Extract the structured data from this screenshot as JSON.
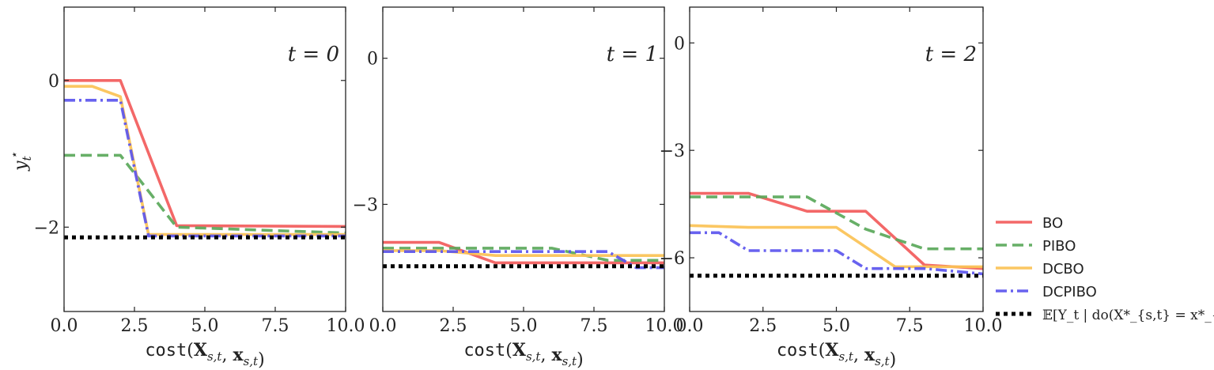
{
  "chart_data": [
    {
      "type": "line",
      "annotation": "t = 0",
      "xlabel": "cost(X_{s,t}, x_{s,t})",
      "ylabel": "y_t^*",
      "xlim": [
        0,
        10
      ],
      "ylim": [
        -3.15,
        1.0
      ],
      "xticks": [
        0.0,
        2.5,
        5.0,
        7.5,
        10.0
      ],
      "xtick_labels": [
        "0.0",
        "2.5",
        "5.0",
        "7.5",
        "10.0"
      ],
      "yticks": [
        0,
        -2
      ],
      "ytick_labels": [
        "0",
        "−2"
      ],
      "series": [
        {
          "name": "BO",
          "x": [
            0,
            2,
            4,
            10
          ],
          "y": [
            0.0,
            0.0,
            -1.98,
            -1.99
          ]
        },
        {
          "name": "PIBO",
          "x": [
            0,
            2,
            4,
            10
          ],
          "y": [
            -1.02,
            -1.02,
            -2.0,
            -2.08
          ]
        },
        {
          "name": "DCBO",
          "x": [
            0,
            1,
            2,
            3,
            10
          ],
          "y": [
            -0.08,
            -0.08,
            -0.22,
            -2.1,
            -2.1
          ]
        },
        {
          "name": "DCPIBO",
          "x": [
            0,
            2,
            3,
            10
          ],
          "y": [
            -0.27,
            -0.27,
            -2.12,
            -2.12
          ]
        },
        {
          "name": "𝔼[Y_t | do(X*_{s,t} = x*_{s,t})]",
          "x": [
            0,
            10
          ],
          "y": [
            -2.14,
            -2.14
          ]
        }
      ]
    },
    {
      "type": "line",
      "annotation": "t = 1",
      "xlabel": "cost(X_{s,t}, x_{s,t})",
      "ylabel": "",
      "xlim": [
        0,
        10
      ],
      "ylim": [
        -5.2,
        1.05
      ],
      "xticks": [
        0.0,
        2.5,
        5.0,
        7.5,
        10.0
      ],
      "xtick_labels": [
        "0.0",
        "2.5",
        "5.0",
        "7.5",
        "10.0"
      ],
      "yticks": [
        0,
        -3
      ],
      "ytick_labels": [
        "0",
        "−3"
      ],
      "series": [
        {
          "name": "BO",
          "x": [
            0,
            2,
            4,
            10
          ],
          "y": [
            -3.78,
            -3.78,
            -4.2,
            -4.2
          ]
        },
        {
          "name": "PIBO",
          "x": [
            0,
            6,
            8,
            10
          ],
          "y": [
            -3.9,
            -3.9,
            -4.15,
            -4.15
          ]
        },
        {
          "name": "DCBO",
          "x": [
            0,
            2,
            4,
            10
          ],
          "y": [
            -3.95,
            -3.95,
            -4.05,
            -4.05
          ]
        },
        {
          "name": "DCPIBO",
          "x": [
            0,
            6,
            8,
            9,
            10
          ],
          "y": [
            -3.97,
            -3.97,
            -3.97,
            -4.3,
            -4.3
          ]
        },
        {
          "name": "𝔼[Y_t | do(X*_{s,t} = x*_{s,t})]",
          "x": [
            0,
            10
          ],
          "y": [
            -4.27,
            -4.27
          ]
        }
      ]
    },
    {
      "type": "line",
      "annotation": "t = 2",
      "xlabel": "cost(X_{s,t}, x_{s,t})",
      "ylabel": "",
      "xlim": [
        0,
        10
      ],
      "ylim": [
        -7.5,
        1.0
      ],
      "xticks": [
        0.0,
        2.5,
        5.0,
        7.5,
        10.0
      ],
      "xtick_labels": [
        "0.0",
        "2.5",
        "5.0",
        "7.5",
        "10.0"
      ],
      "yticks": [
        0,
        -3,
        -6
      ],
      "ytick_labels": [
        "0",
        "−3",
        "−6"
      ],
      "series": [
        {
          "name": "BO",
          "x": [
            0,
            2,
            4,
            6,
            8,
            10
          ],
          "y": [
            -4.2,
            -4.2,
            -4.7,
            -4.7,
            -6.2,
            -6.3
          ]
        },
        {
          "name": "PIBO",
          "x": [
            0,
            4,
            6,
            8,
            10
          ],
          "y": [
            -4.3,
            -4.3,
            -5.2,
            -5.75,
            -5.75
          ]
        },
        {
          "name": "DCBO",
          "x": [
            0,
            2,
            5,
            7,
            10
          ],
          "y": [
            -5.1,
            -5.15,
            -5.15,
            -6.25,
            -6.25
          ]
        },
        {
          "name": "DCPIBO",
          "x": [
            0,
            1,
            2,
            5,
            6,
            8,
            10
          ],
          "y": [
            -5.3,
            -5.3,
            -5.8,
            -5.8,
            -6.3,
            -6.3,
            -6.45
          ]
        },
        {
          "name": "𝔼[Y_t | do(X*_{s,t} = x*_{s,t})]",
          "x": [
            0,
            10
          ],
          "y": [
            -6.5,
            -6.5
          ]
        }
      ]
    }
  ],
  "legend": {
    "placement": "right",
    "items": [
      {
        "name": "BO",
        "color": "#f25b5b",
        "style": "solid"
      },
      {
        "name": "PIBO",
        "color": "#5aa85a",
        "style": "dashed"
      },
      {
        "name": "DCBO",
        "color": "#fbc255",
        "style": "solid"
      },
      {
        "name": "DCPIBO",
        "color": "#5b55ee",
        "style": "dashdot"
      },
      {
        "name": "𝔼[Y_t | do(X*_{s,t} = x*_{s,t})]",
        "color": "#000000",
        "style": "dotted"
      }
    ]
  },
  "series_styles": {
    "BO": {
      "color": "#f25b5b",
      "dash": ""
    },
    "PIBO": {
      "color": "#5aa85a",
      "dash": "14,7"
    },
    "DCBO": {
      "color": "#fbc255",
      "dash": ""
    },
    "DCPIBO": {
      "color": "#5b55ee",
      "dash": "14,5,3,5"
    },
    "𝔼[Y_t | do(X*_{s,t} = x*_{s,t})]": {
      "color": "#000000",
      "dash": "5,5"
    }
  }
}
